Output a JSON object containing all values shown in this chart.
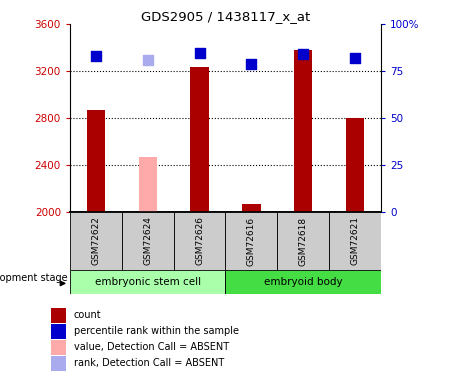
{
  "title": "GDS2905 / 1438117_x_at",
  "samples": [
    "GSM72622",
    "GSM72624",
    "GSM72626",
    "GSM72616",
    "GSM72618",
    "GSM72621"
  ],
  "bar_values": [
    2870,
    2470,
    3240,
    2070,
    3380,
    2800
  ],
  "bar_absent": [
    false,
    true,
    false,
    false,
    false,
    false
  ],
  "rank_values": [
    83,
    81,
    85,
    79,
    84,
    82
  ],
  "rank_absent": [
    false,
    true,
    false,
    false,
    false,
    false
  ],
  "ylim_left": [
    2000,
    3600
  ],
  "ylim_right": [
    0,
    100
  ],
  "yticks_left": [
    2000,
    2400,
    2800,
    3200,
    3600
  ],
  "yticks_right": [
    0,
    25,
    50,
    75,
    100
  ],
  "ytick_right_labels": [
    "0",
    "25",
    "50",
    "75",
    "100%"
  ],
  "bar_color_normal": "#aa0000",
  "bar_color_absent": "#ffaaaa",
  "rank_color_normal": "#0000cc",
  "rank_color_absent": "#aaaaee",
  "group_colors": [
    "#aaffaa",
    "#44dd44"
  ],
  "background_plot": "#ffffff",
  "background_group_row": "#cccccc",
  "ylabel_left_color": "#cc0000",
  "ylabel_right_color": "#0000cc",
  "bar_width": 0.35,
  "rank_marker_size": 45,
  "group_info": [
    {
      "label": "embryonic stem cell",
      "start": 0,
      "end": 2,
      "color_idx": 0
    },
    {
      "label": "embryoid body",
      "start": 3,
      "end": 5,
      "color_idx": 1
    }
  ],
  "legend_items": [
    {
      "color": "#aa0000",
      "label": "count"
    },
    {
      "color": "#0000cc",
      "label": "percentile rank within the sample"
    },
    {
      "color": "#ffaaaa",
      "label": "value, Detection Call = ABSENT"
    },
    {
      "color": "#aaaaee",
      "label": "rank, Detection Call = ABSENT"
    }
  ]
}
